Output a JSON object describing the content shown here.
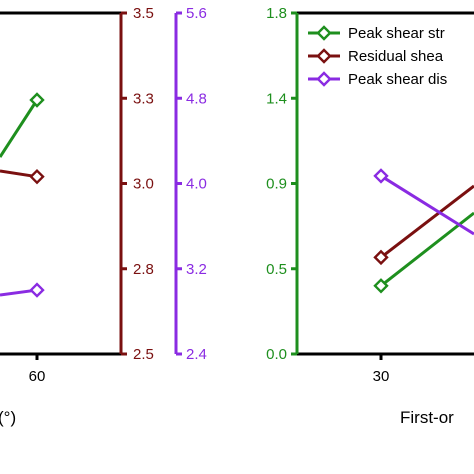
{
  "colors": {
    "peak_strength": "#1e8f1e",
    "residual": "#7a1010",
    "peak_displacement": "#8a2be2",
    "axis": "#000000"
  },
  "chart_data": [
    {
      "type": "line",
      "panel": "left",
      "xlabel": "(°)",
      "x_ticks": [
        "60"
      ],
      "right_axes": [
        {
          "series": "residual",
          "range": [
            2.5,
            3.5
          ],
          "ticks": [
            "2.5",
            "2.8",
            "3.0",
            "3.3",
            "3.5"
          ]
        },
        {
          "series": "peak_displacement",
          "range": [
            2.4,
            5.6
          ],
          "ticks": [
            "2.4",
            "3.2",
            "4.0",
            "4.8",
            "5.6"
          ]
        }
      ],
      "series": [
        {
          "key": "peak_strength",
          "points": [
            {
              "x": "60",
              "y": null
            }
          ]
        },
        {
          "key": "residual",
          "points": [
            {
              "x": "60",
              "y": 3.02
            }
          ]
        },
        {
          "key": "peak_displacement",
          "points": [
            {
              "x": "60",
              "y": 3.0
            }
          ]
        }
      ]
    },
    {
      "type": "line",
      "panel": "right",
      "xlabel": "First-or",
      "x_ticks": [
        "30"
      ],
      "left_axis": {
        "series": "peak_strength",
        "range": [
          0.0,
          1.8
        ],
        "ticks": [
          "0.0",
          "0.5",
          "0.9",
          "1.4",
          "1.8"
        ]
      },
      "legend": {
        "placement": "top-right",
        "entries": [
          {
            "key": "peak_strength",
            "label": "Peak shear str"
          },
          {
            "key": "residual",
            "label": "Residual shea"
          },
          {
            "key": "peak_displacement",
            "label": "Peak shear dis"
          }
        ]
      },
      "series": [
        {
          "key": "peak_strength",
          "points": [
            {
              "x": "30",
              "y": 0.36
            }
          ]
        },
        {
          "key": "residual",
          "points": [
            {
              "x": "30",
              "y": 0.51
            }
          ]
        },
        {
          "key": "peak_displacement",
          "points": [
            {
              "x": "30",
              "y": 0.94
            }
          ]
        }
      ]
    }
  ]
}
